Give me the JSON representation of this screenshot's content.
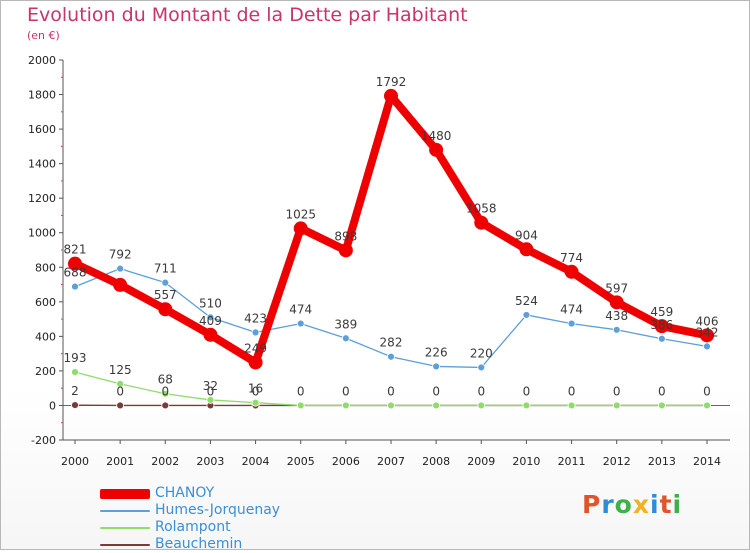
{
  "title": "Evolution du Montant de la Dette par Habitant",
  "subtitle": "(en €)",
  "logo": {
    "text": "Proxiti",
    "colors": [
      "#e0542b",
      "#2d8ed4",
      "#3db04a",
      "#f0b21f",
      "#2d8ed4",
      "#e0542b",
      "#3db04a"
    ]
  },
  "chart_data": {
    "type": "line",
    "x": [
      2000,
      2001,
      2002,
      2003,
      2004,
      2005,
      2006,
      2007,
      2008,
      2009,
      2010,
      2011,
      2012,
      2013,
      2014
    ],
    "ylim": [
      -200,
      2000
    ],
    "yticks": [
      -200,
      0,
      200,
      400,
      600,
      800,
      1000,
      1200,
      1400,
      1600,
      1800,
      2000
    ],
    "grid": false,
    "legend_position": "bottom-left",
    "series": [
      {
        "name": "CHANOY",
        "color": "#ee0000",
        "values": [
          821,
          698,
          557,
          409,
          249,
          1025,
          898,
          1792,
          1480,
          1058,
          904,
          774,
          597,
          459,
          406
        ],
        "labels": [
          "821",
          "",
          "557",
          "409",
          "249",
          "1025",
          "898",
          "1792",
          "1480",
          "1058",
          "904",
          "774",
          "597",
          "459",
          "406"
        ]
      },
      {
        "name": "Humes-Jorquenay",
        "color": "#5d9fd8",
        "values": [
          688,
          792,
          711,
          510,
          423,
          474,
          389,
          282,
          226,
          220,
          524,
          474,
          438,
          386,
          342
        ],
        "labels": [
          "688",
          "792",
          "711",
          "510",
          "423",
          "474",
          "389",
          "282",
          "226",
          "220",
          "524",
          "474",
          "438",
          "386",
          "342"
        ]
      },
      {
        "name": "Rolampont",
        "color": "#8fdc6a",
        "values": [
          193,
          125,
          68,
          32,
          16,
          0,
          0,
          0,
          0,
          0,
          0,
          0,
          0,
          0,
          0
        ],
        "labels": [
          "193",
          "125",
          "68",
          "32",
          "16",
          "",
          "",
          "",
          "",
          "",
          "",
          "",
          "",
          "",
          ""
        ]
      },
      {
        "name": "Beauchemin",
        "color": "#7a3a3a",
        "values": [
          2,
          0,
          0,
          0,
          0,
          0,
          0,
          0,
          0,
          0,
          0,
          0,
          0,
          0,
          0
        ],
        "labels": [
          "2",
          "0",
          "0",
          "0",
          "0",
          "0",
          "0",
          "0",
          "0",
          "0",
          "0",
          "0",
          "0",
          "0",
          "0"
        ]
      }
    ]
  }
}
